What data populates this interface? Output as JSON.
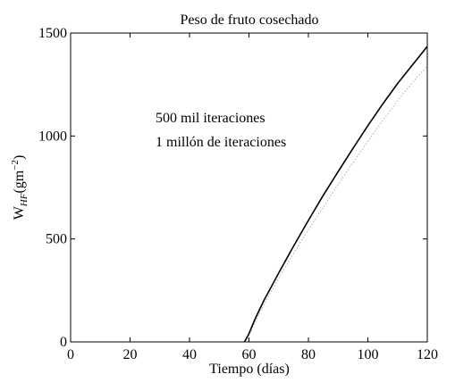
{
  "chart_data": {
    "type": "line",
    "title": "Peso de fruto cosechado",
    "xlabel": "Tiempo (días)",
    "ylabel": {
      "main": "W",
      "subscript": "HF",
      "unit_open": "(gm",
      "unit_sup": "−2",
      "unit_close": ")"
    },
    "xlim": [
      0,
      120
    ],
    "ylim": [
      0,
      1500
    ],
    "xticks": [
      "0",
      "20",
      "40",
      "60",
      "80",
      "100",
      "120"
    ],
    "yticks": [
      "0",
      "500",
      "1000",
      "1500"
    ],
    "grid": false,
    "legend_position": "upper-left inside",
    "series": [
      {
        "name": "500 mil iteraciones",
        "color": "#000000",
        "style": "solid",
        "x": [
          58.5,
          60,
          62,
          65,
          70,
          75,
          80,
          85,
          90,
          95,
          100,
          105,
          110,
          115,
          120
        ],
        "y": [
          0,
          40,
          110,
          200,
          335,
          465,
          590,
          712,
          827,
          940,
          1050,
          1155,
          1255,
          1345,
          1435
        ]
      },
      {
        "name": "1 millón de iteraciones",
        "color": "#b0b0b0",
        "style": "dotted",
        "x": [
          59,
          60,
          62,
          65,
          70,
          75,
          80,
          85,
          90,
          95,
          100,
          105,
          110,
          115,
          120
        ],
        "y": [
          0,
          30,
          95,
          180,
          310,
          430,
          545,
          655,
          765,
          870,
          975,
          1075,
          1170,
          1260,
          1340
        ]
      }
    ]
  }
}
